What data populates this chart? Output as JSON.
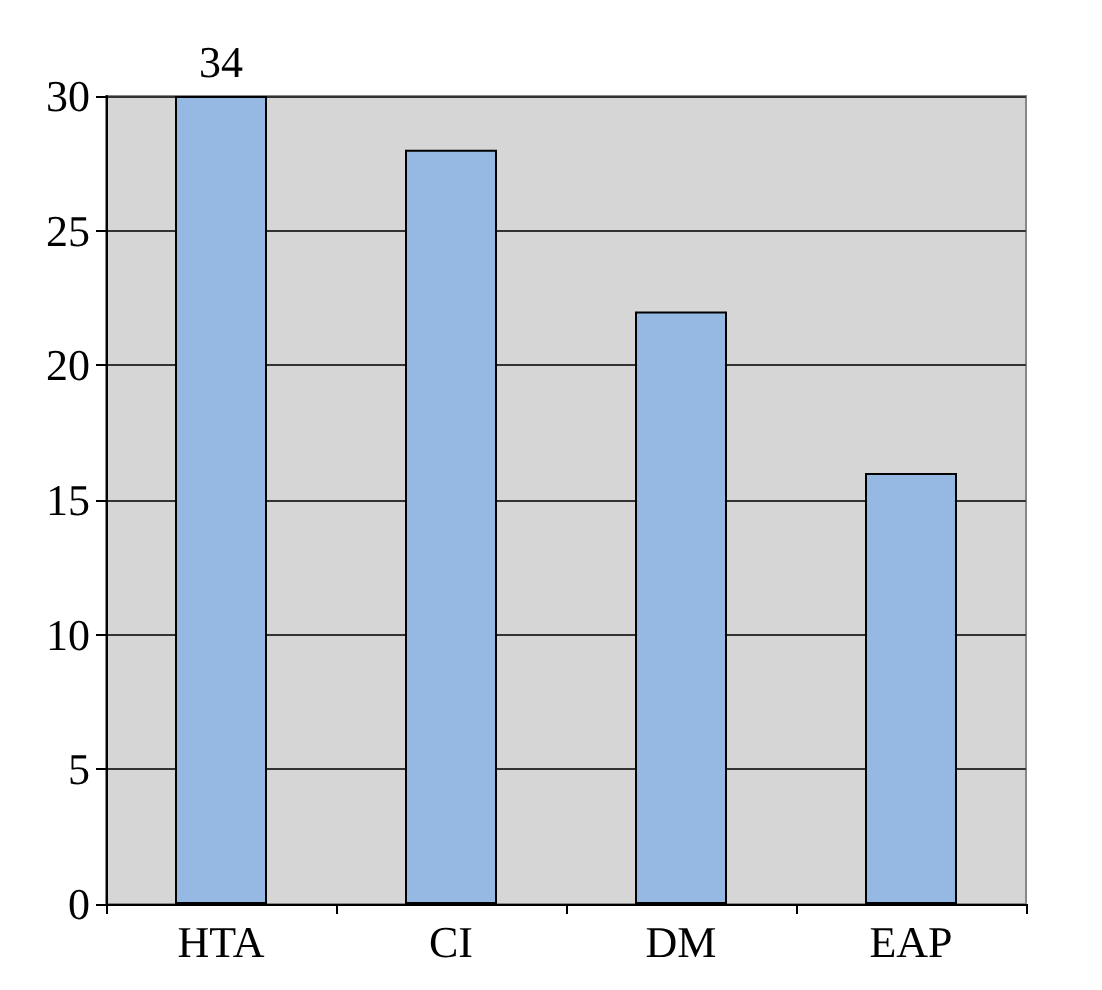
{
  "chart_data": {
    "type": "bar",
    "categories": [
      "HTA",
      "CI",
      "DM",
      "EAP"
    ],
    "values": [
      30,
      28,
      22,
      16
    ],
    "color": "#95b9e3",
    "annotations": [
      "34"
    ],
    "ylim": [
      0,
      30
    ],
    "yticks": [
      0,
      5,
      10,
      15,
      20,
      25,
      30
    ],
    "grid": "y"
  }
}
